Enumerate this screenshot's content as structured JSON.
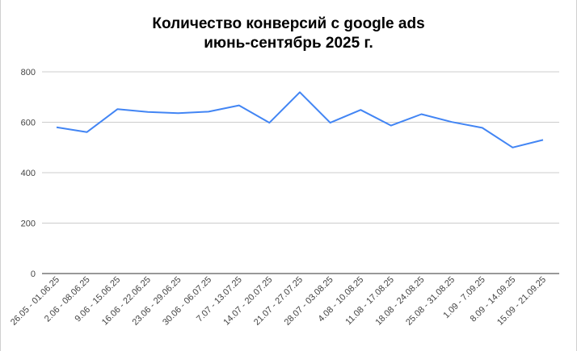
{
  "chart_data": {
    "type": "line",
    "title_lines": [
      "Количество конверсий с google ads",
      "июнь-сентябрь 2025 г."
    ],
    "xlabel": "",
    "ylabel": "",
    "categories": [
      "26.05 - 01.06.25",
      "2.06 - 08.06.25",
      "9.06 - 15.06.25",
      "16.06 - 22.06.25",
      "23.06 - 29.06.25",
      "30.06 - 06.07.25",
      "7.07 - 13.07.25",
      "14.07 - 20.07.25",
      "21.07 - 27.07.25",
      "28.07 - 03.08.25",
      "4.08 - 10.08.25",
      "11.08 - 17.08.25",
      "18.08 - 24.08.25",
      "25.08 - 31.08.25",
      "1.09 - 7.09.25",
      "8.09 - 14.09.25",
      "15.09 - 21.09.25"
    ],
    "series": [
      {
        "color": "#4285f4",
        "values": [
          580,
          561,
          652,
          641,
          636,
          642,
          667,
          598,
          719,
          598,
          649,
          587,
          632,
          601,
          578,
          500,
          530
        ]
      }
    ],
    "ylim": [
      0,
      800
    ],
    "yticks": [
      0,
      200,
      400,
      600,
      800
    ],
    "grid": true,
    "legend": "none"
  }
}
